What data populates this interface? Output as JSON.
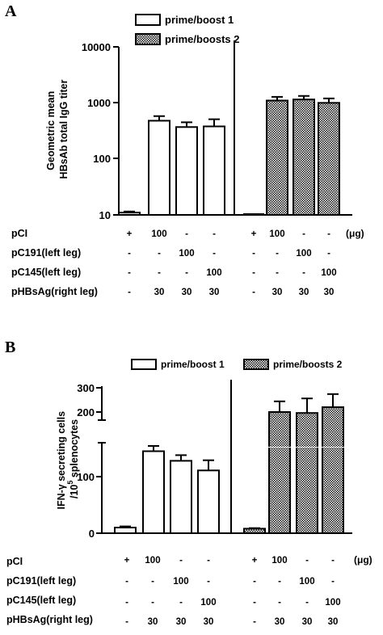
{
  "panels": [
    {
      "letter": "A",
      "ylabel_lines": [
        "Geometric mean",
        "HBsAb total IgG titer"
      ],
      "legend": [
        {
          "label": "prime/boost 1",
          "pattern": "open"
        },
        {
          "label": "prime/boosts 2",
          "pattern": "checkered"
        }
      ],
      "table": {
        "rows": [
          {
            "label": "pCI",
            "values": [
              "+",
              "100",
              "-",
              "-",
              "+",
              "100",
              "-",
              "-"
            ]
          },
          {
            "label": "pC191(left leg)",
            "values": [
              "-",
              "-",
              "100",
              "-",
              "-",
              "-",
              "100",
              "-"
            ]
          },
          {
            "label": "pC145(left leg)",
            "values": [
              "-",
              "-",
              "-",
              "100",
              "-",
              "-",
              "-",
              "100"
            ]
          },
          {
            "label": "pHBsAg(right leg)",
            "values": [
              "-",
              "30",
              "30",
              "30",
              "-",
              "30",
              "30",
              "30"
            ]
          }
        ],
        "unit": "(μg)"
      }
    },
    {
      "letter": "B",
      "ylabel_line1": "IFN-γ  secreting cells",
      "ylabel_line2_pre": "/10",
      "ylabel_line2_sup": "5",
      "ylabel_line2_post": " splenocytes",
      "legend": [
        {
          "label": "prime/boost 1",
          "pattern": "open"
        },
        {
          "label": "prime/boosts 2",
          "pattern": "checkered"
        }
      ],
      "table": {
        "rows": [
          {
            "label": "pCI",
            "values": [
              "+",
              "100",
              "-",
              "-",
              "+",
              "100",
              "-",
              "-"
            ]
          },
          {
            "label": "pC191(left leg)",
            "values": [
              "-",
              "-",
              "100",
              "-",
              "-",
              "-",
              "100",
              "-"
            ]
          },
          {
            "label": "pC145(left leg)",
            "values": [
              "-",
              "-",
              "-",
              "100",
              "-",
              "-",
              "-",
              "100"
            ]
          },
          {
            "label": "pHBsAg(right leg)",
            "values": [
              "-",
              "30",
              "30",
              "30",
              "-",
              "30",
              "30",
              "30"
            ]
          }
        ],
        "unit": "(μg)"
      }
    }
  ],
  "chart_data": [
    {
      "type": "bar",
      "yscale": "log",
      "ylim": [
        10,
        10000
      ],
      "yticks": [
        "10",
        "100",
        "1000",
        "10000"
      ],
      "ytick_values": [
        10,
        100,
        1000,
        10000
      ],
      "series": [
        {
          "name": "prime/boost 1",
          "values": [
            11,
            480,
            370,
            380,
            null,
            null,
            null,
            null
          ],
          "errors": [
            0.5,
            100,
            80,
            130,
            null,
            null,
            null,
            null
          ]
        },
        {
          "name": "prime/boosts 2",
          "values": [
            null,
            null,
            null,
            null,
            10,
            1100,
            1150,
            1000
          ],
          "errors": [
            null,
            null,
            null,
            null,
            0,
            180,
            180,
            200
          ]
        }
      ]
    },
    {
      "type": "bar",
      "yscale": "broken-linear",
      "axis_break": [
        150,
        180
      ],
      "ylim": [
        0,
        300
      ],
      "yticks": [
        "0",
        "100",
        "200",
        "300"
      ],
      "ytick_values": [
        0,
        100,
        200,
        300
      ],
      "series": [
        {
          "name": "prime/boost 1",
          "values": [
            10,
            145,
            128,
            111,
            null,
            null,
            null,
            null
          ],
          "errors": [
            2,
            35,
            10,
            18,
            null,
            null,
            null,
            null
          ]
        },
        {
          "name": "prime/boosts 2",
          "values": [
            null,
            null,
            null,
            null,
            8,
            250,
            248,
            260
          ],
          "errors": [
            null,
            null,
            null,
            null,
            1,
            22,
            30,
            27
          ]
        }
      ]
    }
  ]
}
